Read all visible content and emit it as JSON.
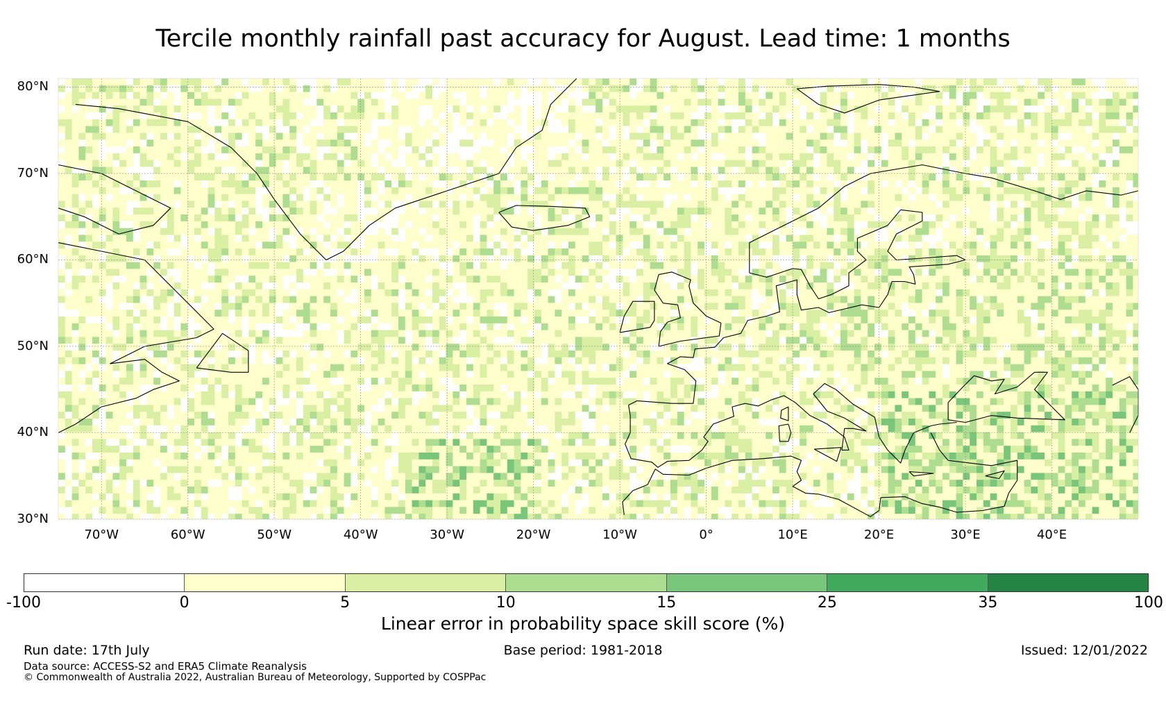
{
  "title": "Tercile monthly rainfall past accuracy for August. Lead time: 1 months",
  "map": {
    "extent": {
      "lon_min": -75,
      "lon_max": 50,
      "lat_min": 30,
      "lat_max": 81
    },
    "lat_labels": [
      {
        "value": 80,
        "label": "80°N"
      },
      {
        "value": 70,
        "label": "70°N"
      },
      {
        "value": 60,
        "label": "60°N"
      },
      {
        "value": 50,
        "label": "50°N"
      },
      {
        "value": 40,
        "label": "40°N"
      },
      {
        "value": 30,
        "label": "30°N"
      }
    ],
    "lon_labels": [
      {
        "value": -70,
        "label": "70°W"
      },
      {
        "value": -60,
        "label": "60°W"
      },
      {
        "value": -50,
        "label": "50°W"
      },
      {
        "value": -40,
        "label": "40°W"
      },
      {
        "value": -30,
        "label": "30°W"
      },
      {
        "value": -20,
        "label": "20°W"
      },
      {
        "value": -10,
        "label": "10°W"
      },
      {
        "value": 0,
        "label": "0°"
      },
      {
        "value": 10,
        "label": "10°E"
      },
      {
        "value": 20,
        "label": "20°E"
      },
      {
        "value": 30,
        "label": "30°E"
      },
      {
        "value": 40,
        "label": "40°E"
      }
    ],
    "coastline_color": "#000000",
    "gridline_color": "#888888"
  },
  "colorbar": {
    "label": "Linear error in probability space skill score (%)",
    "ticks": [
      "-100",
      "0",
      "5",
      "10",
      "15",
      "25",
      "35",
      "100"
    ],
    "colors": [
      "#ffffff",
      "#ffffcc",
      "#d9f0a3",
      "#addd8e",
      "#78c679",
      "#41ab5d",
      "#238443"
    ]
  },
  "footer": {
    "run_date": "Run date: 17th July",
    "base_period": "Base period: 1981-2018",
    "issued": "Issued: 12/01/2022",
    "data_source": "Data source: ACCESS-S2 and ERA5 Climate Reanalysis",
    "copyright": "© Commonwealth of Australia 2022, Australian Bureau of Meteorology, Supported by COSPPac"
  }
}
